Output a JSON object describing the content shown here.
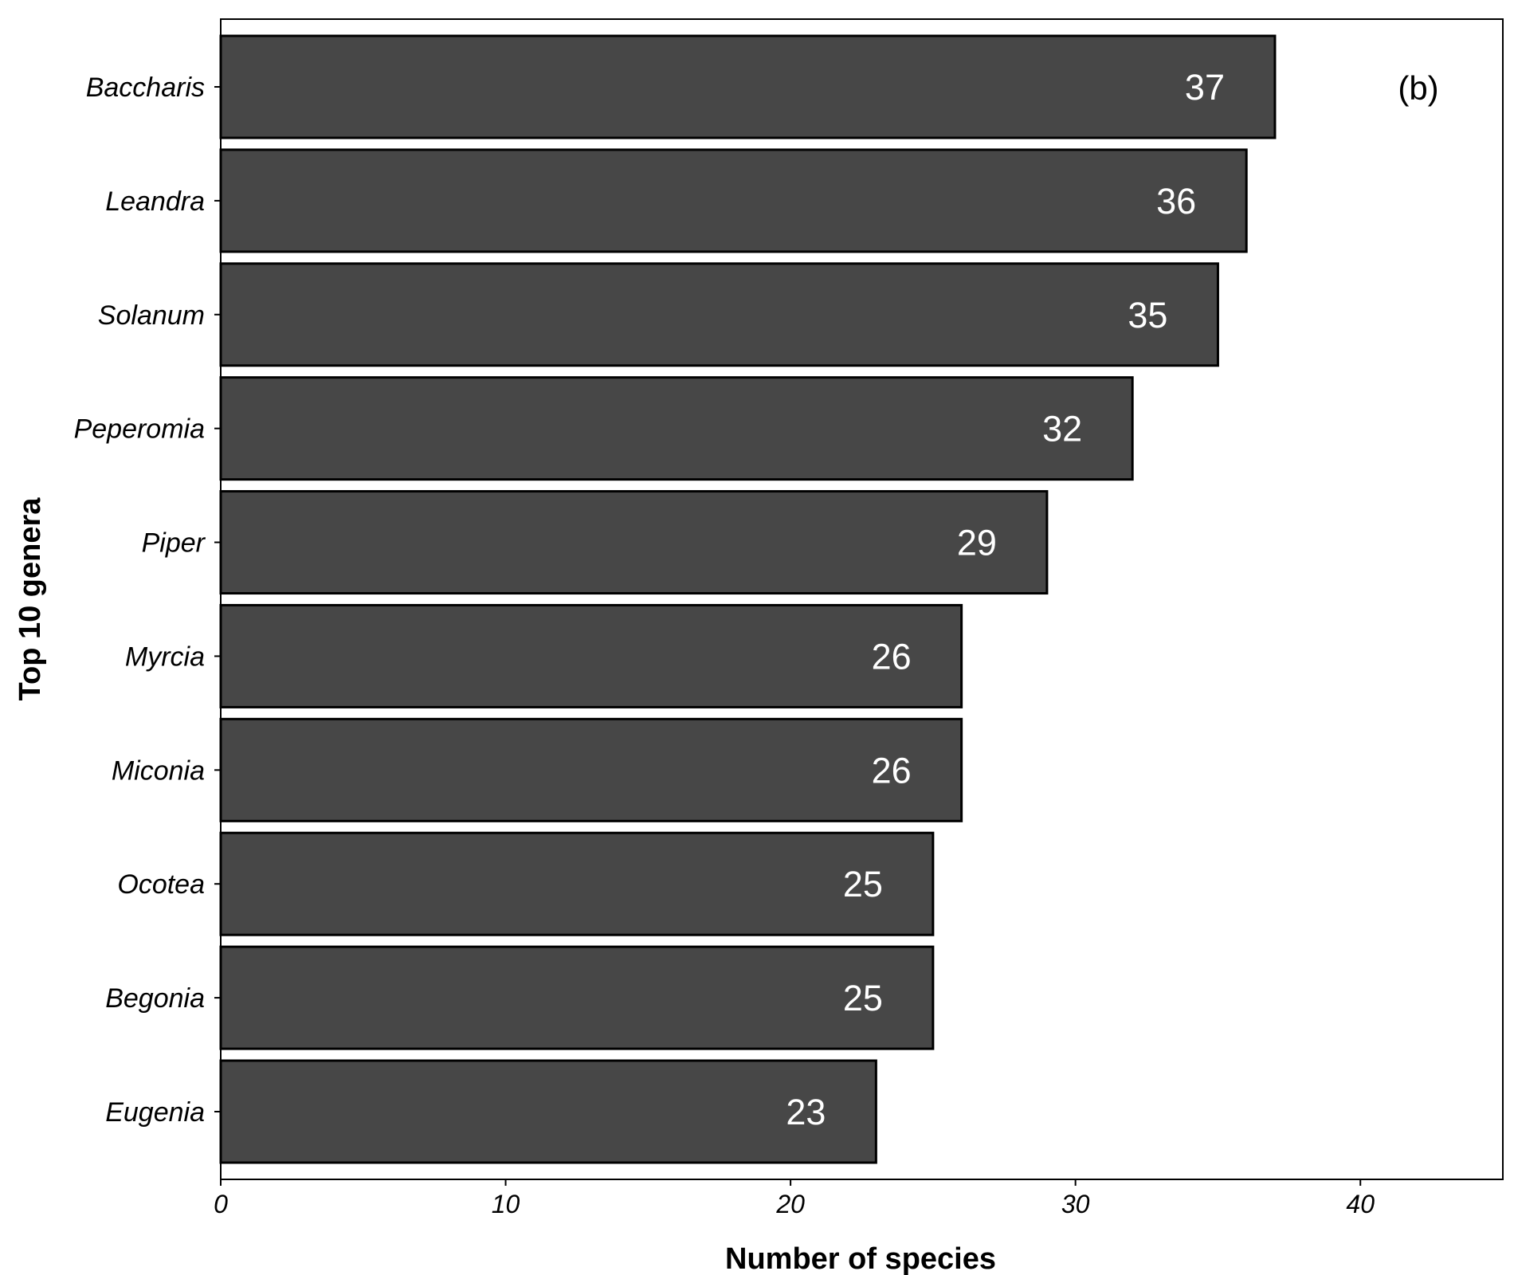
{
  "chart_data": {
    "type": "bar",
    "orientation": "horizontal",
    "categories": [
      "Baccharis",
      "Leandra",
      "Solanum",
      "Peperomia",
      "Piper",
      "Myrcia",
      "Miconia",
      "Ocotea",
      "Begonia",
      "Eugenia"
    ],
    "values": [
      37,
      36,
      35,
      32,
      29,
      26,
      26,
      25,
      25,
      23
    ],
    "data_labels": [
      "37",
      "36",
      "35",
      "32",
      "29",
      "26",
      "26",
      "25",
      "25",
      "23"
    ],
    "xlabel": "Number of species",
    "ylabel": "Top 10 genera",
    "xlim": [
      0,
      45
    ],
    "xticks": [
      0,
      10,
      20,
      30,
      40
    ],
    "xtick_labels": [
      "0",
      "10",
      "20",
      "30",
      "40"
    ],
    "annotation": "(b)",
    "grid": false,
    "colors": {
      "bar_fill": "#474747",
      "bar_stroke": "#000000",
      "label_text": "#ffffff"
    }
  }
}
